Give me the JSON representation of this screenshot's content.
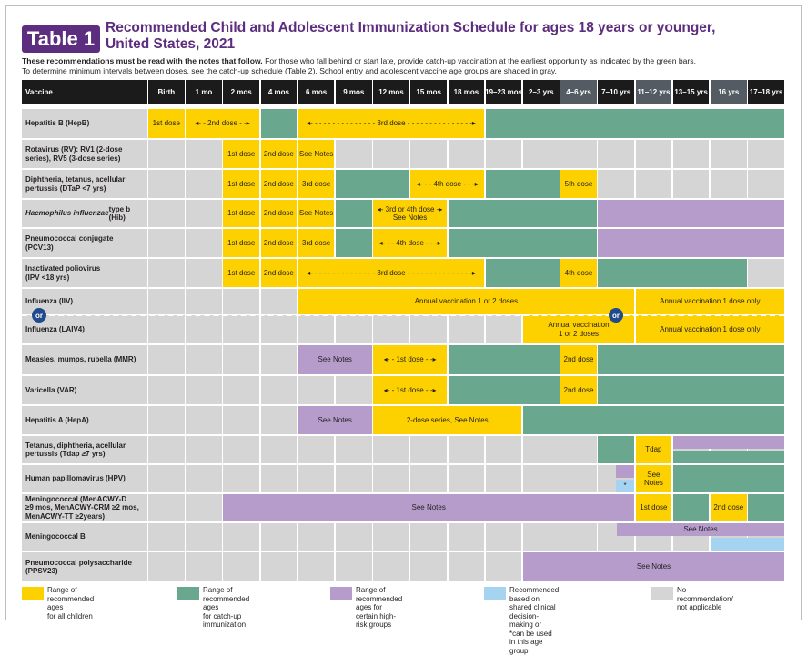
{
  "title": {
    "badge": "Table 1",
    "line1": "Recommended Child and Adolescent Immunization Schedule for ages 18 years or younger,",
    "line2": "United States, 2021"
  },
  "intro": {
    "bold": "These recommendations must be read with the notes that follow.",
    "rest": " For those who fall behind or start late, provide catch-up vaccination at the earliest opportunity as indicated by the green bars.",
    "line2": "To determine minimum intervals between doses, see the catch-up schedule (Table 2). School entry and adolescent vaccine age groups are shaded in gray."
  },
  "colors": {
    "yellow": "#fdd000",
    "green": "#69a88e",
    "purple": "#b59ccb",
    "blue": "#a5d3f0",
    "gray": "#d5d5d5",
    "label_bg": "#d5d5d5",
    "header": "#1b1b1b",
    "header_shaded": "#545b63"
  },
  "header": {
    "vaccine": "Vaccine",
    "columns": [
      "Birth",
      "1 mo",
      "2 mos",
      "4 mos",
      "6 mos",
      "9 mos",
      "12 mos",
      "15 mos",
      "18 mos",
      "19–23 mos",
      "2–3 yrs",
      "4–6 yrs",
      "7–10 yrs",
      "11–12 yrs",
      "13–15 yrs",
      "16 yrs",
      "17–18 yrs"
    ],
    "shaded": [
      false,
      false,
      false,
      false,
      false,
      false,
      false,
      false,
      false,
      false,
      false,
      true,
      false,
      true,
      false,
      true,
      false
    ]
  },
  "rows": [
    {
      "label": "Hepatitis B (HepB)",
      "cells": [
        {
          "s": 0,
          "e": 0,
          "c": "yellow",
          "t": "1st dose"
        },
        {
          "s": 1,
          "e": 2,
          "c": "yellow",
          "t": "◂- - 2nd dose - -▸"
        },
        {
          "s": 3,
          "e": 3,
          "c": "green",
          "t": ""
        },
        {
          "s": 4,
          "e": 8,
          "c": "yellow",
          "t": "◂- - - - - - - - - - - - - - - 3rd dose - - - - - - - - - - - - - - -▸"
        },
        {
          "s": 9,
          "e": 16,
          "c": "green",
          "t": ""
        }
      ]
    },
    {
      "label": "Rotavirus (RV): RV1 (2-dose\nseries), RV5 (3-dose series)",
      "cells": [
        {
          "s": 2,
          "e": 2,
          "c": "yellow",
          "t": "1st dose"
        },
        {
          "s": 3,
          "e": 3,
          "c": "yellow",
          "t": "2nd dose"
        },
        {
          "s": 4,
          "e": 4,
          "c": "yellow",
          "t": "See Notes"
        }
      ]
    },
    {
      "label": "Diphtheria, tetanus, acellular\npertussis (DTaP <7 yrs)",
      "cells": [
        {
          "s": 2,
          "e": 2,
          "c": "yellow",
          "t": "1st dose"
        },
        {
          "s": 3,
          "e": 3,
          "c": "yellow",
          "t": "2nd dose"
        },
        {
          "s": 4,
          "e": 4,
          "c": "yellow",
          "t": "3rd dose"
        },
        {
          "s": 5,
          "e": 6,
          "c": "green",
          "t": ""
        },
        {
          "s": 7,
          "e": 8,
          "c": "yellow",
          "t": "◂- - - 4th dose - - -▸"
        },
        {
          "s": 9,
          "e": 10,
          "c": "green",
          "t": ""
        },
        {
          "s": 11,
          "e": 11,
          "c": "yellow",
          "t": "5th dose"
        }
      ]
    },
    {
      "label": "Haemophilus influenzae type b\n(Hib)",
      "italic": "Haemophilus influenzae",
      "cells": [
        {
          "s": 2,
          "e": 2,
          "c": "yellow",
          "t": "1st dose"
        },
        {
          "s": 3,
          "e": 3,
          "c": "yellow",
          "t": "2nd dose"
        },
        {
          "s": 4,
          "e": 4,
          "c": "yellow",
          "t": "See Notes"
        },
        {
          "s": 5,
          "e": 5,
          "c": "green",
          "t": ""
        },
        {
          "s": 6,
          "e": 7,
          "c": "yellow",
          "t": "◂- 3rd or 4th dose -▸\nSee Notes"
        },
        {
          "s": 8,
          "e": 11,
          "c": "green",
          "t": ""
        },
        {
          "s": 12,
          "e": 16,
          "c": "purple",
          "t": ""
        }
      ]
    },
    {
      "label": "Pneumococcal conjugate\n(PCV13)",
      "cells": [
        {
          "s": 2,
          "e": 2,
          "c": "yellow",
          "t": "1st dose"
        },
        {
          "s": 3,
          "e": 3,
          "c": "yellow",
          "t": "2nd dose"
        },
        {
          "s": 4,
          "e": 4,
          "c": "yellow",
          "t": "3rd dose"
        },
        {
          "s": 5,
          "e": 5,
          "c": "green",
          "t": ""
        },
        {
          "s": 6,
          "e": 7,
          "c": "yellow",
          "t": "◂- - - 4th dose - - -▸"
        },
        {
          "s": 8,
          "e": 11,
          "c": "green",
          "t": ""
        },
        {
          "s": 12,
          "e": 16,
          "c": "purple",
          "t": ""
        }
      ]
    },
    {
      "label": "Inactivated poliovirus\n(IPV <18 yrs)",
      "cells": [
        {
          "s": 2,
          "e": 2,
          "c": "yellow",
          "t": "1st dose"
        },
        {
          "s": 3,
          "e": 3,
          "c": "yellow",
          "t": "2nd dose"
        },
        {
          "s": 4,
          "e": 8,
          "c": "yellow",
          "t": "◂- - - - - - - - - - - - - - - 3rd dose - - - - - - - - - - - - - - -▸"
        },
        {
          "s": 9,
          "e": 10,
          "c": "green",
          "t": ""
        },
        {
          "s": 11,
          "e": 11,
          "c": "yellow",
          "t": "4th dose"
        },
        {
          "s": 12,
          "e": 15,
          "c": "green",
          "t": ""
        }
      ]
    },
    {
      "label": "Influenza (IIV)",
      "cells": [
        {
          "s": 4,
          "e": 12,
          "c": "yellow",
          "t": "Annual vaccination 1 or 2 doses"
        },
        {
          "s": 13,
          "e": 16,
          "c": "yellow",
          "t": "Annual vaccination 1 dose only"
        }
      ]
    },
    {
      "label": "Influenza (LAIV4)",
      "cells": [
        {
          "s": 10,
          "e": 12,
          "c": "yellow",
          "t": "Annual vaccination\n1 or 2 doses"
        },
        {
          "s": 13,
          "e": 16,
          "c": "yellow",
          "t": "Annual vaccination 1 dose only"
        }
      ]
    },
    {
      "label": "Measles, mumps, rubella (MMR)",
      "cells": [
        {
          "s": 4,
          "e": 5,
          "c": "purple",
          "t": "See Notes"
        },
        {
          "s": 6,
          "e": 7,
          "c": "yellow",
          "t": "◂- - 1st dose - -▸"
        },
        {
          "s": 8,
          "e": 10,
          "c": "green",
          "t": ""
        },
        {
          "s": 11,
          "e": 11,
          "c": "yellow",
          "t": "2nd dose"
        },
        {
          "s": 12,
          "e": 16,
          "c": "green",
          "t": ""
        }
      ]
    },
    {
      "label": "Varicella (VAR)",
      "cells": [
        {
          "s": 6,
          "e": 7,
          "c": "yellow",
          "t": "◂- - 1st dose - -▸"
        },
        {
          "s": 8,
          "e": 10,
          "c": "green",
          "t": ""
        },
        {
          "s": 11,
          "e": 11,
          "c": "yellow",
          "t": "2nd dose"
        },
        {
          "s": 12,
          "e": 16,
          "c": "green",
          "t": ""
        }
      ]
    },
    {
      "label": "Hepatitis A (HepA)",
      "cells": [
        {
          "s": 4,
          "e": 5,
          "c": "purple",
          "t": "See Notes"
        },
        {
          "s": 6,
          "e": 9,
          "c": "yellow",
          "t": "2-dose series, See Notes"
        },
        {
          "s": 10,
          "e": 16,
          "c": "green",
          "t": ""
        }
      ]
    },
    {
      "label": "Tetanus, diphtheria, acellular\npertussis (Tdap ≥7 yrs)",
      "cells": [
        {
          "s": 12,
          "e": 12,
          "c": "green",
          "t": ""
        },
        {
          "s": 13,
          "e": 13,
          "c": "yellow",
          "t": "Tdap"
        },
        {
          "s": 14,
          "e": 16,
          "c": "purple",
          "t": "",
          "half": "top"
        },
        {
          "s": 14,
          "e": 16,
          "c": "green",
          "t": "",
          "half": "bottom"
        }
      ]
    },
    {
      "label": "Human papillomavirus (HPV)",
      "cells": [
        {
          "s": 12,
          "e": 12,
          "c": "purple",
          "t": "",
          "half": "top-right"
        },
        {
          "s": 12,
          "e": 12,
          "c": "blue",
          "t": "*",
          "half": "bottom-right"
        },
        {
          "s": 13,
          "e": 13,
          "c": "yellow",
          "t": "See\nNotes"
        },
        {
          "s": 14,
          "e": 16,
          "c": "green",
          "t": ""
        }
      ]
    },
    {
      "label": "Meningococcal (MenACWY-D\n≥9 mos, MenACWY-CRM ≥2 mos,\nMenACWY-TT ≥2years)",
      "cells": [
        {
          "s": 2,
          "e": 12,
          "c": "purple",
          "t": "See Notes"
        },
        {
          "s": 13,
          "e": 13,
          "c": "yellow",
          "t": "1st dose"
        },
        {
          "s": 14,
          "e": 14,
          "c": "green",
          "t": ""
        },
        {
          "s": 15,
          "e": 15,
          "c": "yellow",
          "t": "2nd dose"
        },
        {
          "s": 16,
          "e": 16,
          "c": "green",
          "t": ""
        }
      ]
    },
    {
      "label": "Meningococcal B",
      "cells": [
        {
          "s": 12,
          "e": 16,
          "c": "purple",
          "t": "See Notes",
          "half": "top-from-mid"
        },
        {
          "s": 15,
          "e": 16,
          "c": "blue",
          "t": "",
          "half": "bottom"
        }
      ]
    },
    {
      "label": "Pneumococcal polysaccharide\n(PPSV23)",
      "cells": [
        {
          "s": 10,
          "e": 16,
          "c": "purple",
          "t": "See Notes"
        }
      ]
    }
  ],
  "or_label": "or",
  "legend": [
    {
      "color": "yellow",
      "text": "Range of recommended ages\nfor all children"
    },
    {
      "color": "green",
      "text": "Range of recommended ages\nfor catch-up immunization"
    },
    {
      "color": "purple",
      "text": "Range of recommended ages for\ncertain high-risk groups"
    },
    {
      "color": "blue",
      "text": "Recommended based on shared clinical\ndecision-making or\n*can be used in this age group"
    },
    {
      "color": "gray",
      "text": "No recommendation/\nnot applicable"
    }
  ]
}
